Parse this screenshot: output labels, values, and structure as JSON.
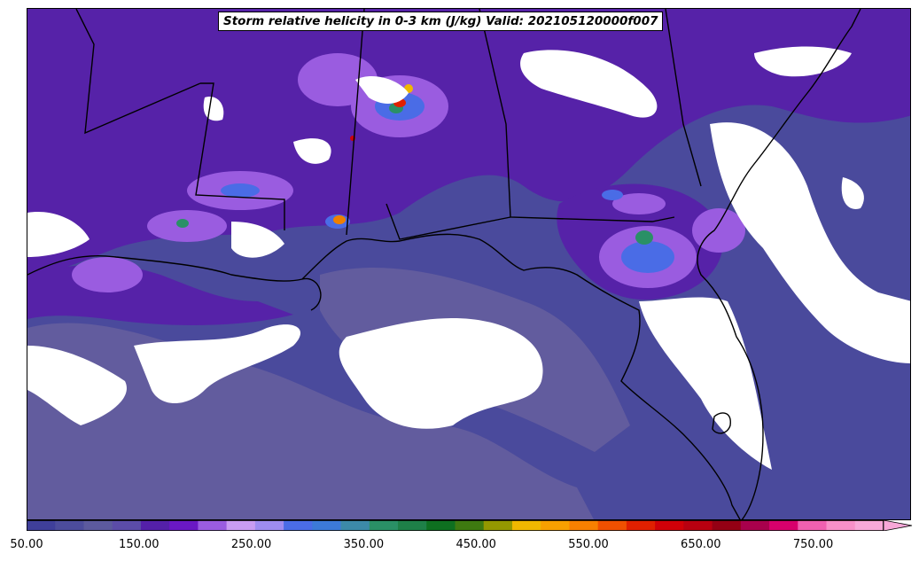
{
  "map": {
    "title": "Storm relative helicity in 0-3 km (J/kg) Valid: 202105120000f007",
    "variable": "Storm relative helicity in 0-3 km",
    "units": "J/kg",
    "valid": "202105120000f007"
  },
  "colorbar": {
    "min": 50,
    "max": 800,
    "step": 25,
    "extend": "max",
    "tick_labels": [
      "50.00",
      "150.00",
      "250.00",
      "350.00",
      "450.00",
      "550.00",
      "650.00",
      "750.00"
    ],
    "colors": [
      "#3f3f9a",
      "#4c4c9c",
      "#5c5a9e",
      "#5b4ca8",
      "#5420a8",
      "#6a18c4",
      "#9a5ce0",
      "#c99cf2",
      "#9e8cf0",
      "#4a6ce6",
      "#3c7ad8",
      "#3c8aa8",
      "#2a9066",
      "#1e8048",
      "#0e7020",
      "#3e7a10",
      "#949800",
      "#f0b800",
      "#f8a000",
      "#f88000",
      "#f05000",
      "#e02000",
      "#d00008",
      "#b80010",
      "#940014",
      "#a8004c",
      "#d8006c",
      "#f060b0",
      "#f890c8",
      "#f8a8d8"
    ]
  },
  "chart_data": {
    "type": "heatmap",
    "title": "Storm relative helicity in 0-3 km (J/kg) Valid: 202105120000f007",
    "region": "Southeastern United States and Gulf of Mexico",
    "levels": [
      50,
      75,
      100,
      125,
      150,
      175,
      200,
      225,
      250,
      275,
      300,
      325,
      350,
      375,
      400,
      425,
      450,
      475,
      500,
      525,
      550,
      575,
      600,
      625,
      650,
      675,
      700,
      725,
      750,
      775,
      800
    ],
    "colorbar_ticks": [
      50,
      150,
      250,
      350,
      450,
      550,
      650,
      750
    ],
    "extend": "max"
  }
}
